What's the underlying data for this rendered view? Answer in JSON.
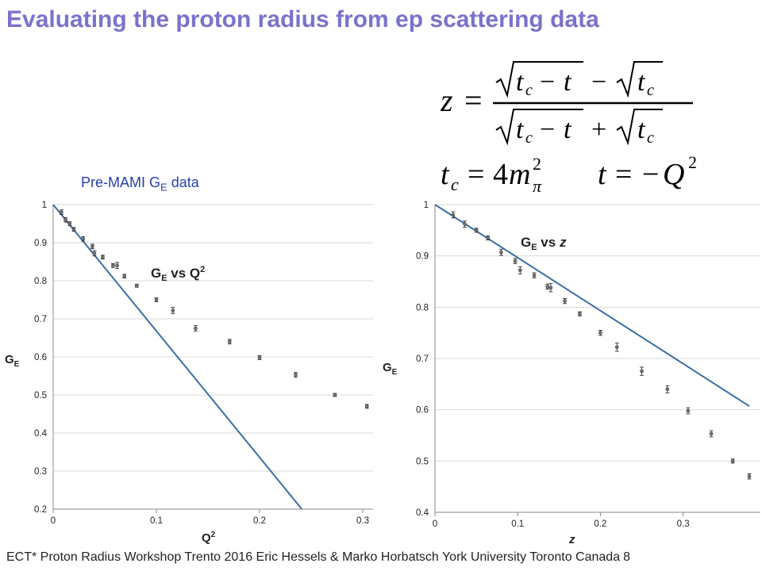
{
  "slide": {
    "title": "Evaluating the proton radius from ep scattering data",
    "subtitle_main": "Pre-MAMI G",
    "subtitle_sub": "E",
    "subtitle_tail": " data",
    "footer": "ECT* Proton Radius Workshop Trento 2016  Eric Hessels & Marko Horbatsch York University Toronto Canada",
    "page_number": "8",
    "colors": {
      "title": "#7b72cc",
      "subtitle": "#2540b0",
      "fit_line": "#3a6ea5",
      "grid": "#d9d9d9"
    }
  },
  "formulas": {
    "z_lhs": "z =",
    "z_numerator": "√(t_c − t) − √t_c",
    "z_denominator": "√(t_c − t) + √t_c",
    "tc_def": "t_c = 4m_π²",
    "t_def": "t = −Q²"
  },
  "chart_data": [
    {
      "type": "scatter",
      "title": "G_E vs Q²",
      "xlabel": "Q²",
      "ylabel": "G_E",
      "xlim": [
        0,
        0.3
      ],
      "ylim": [
        0.2,
        1
      ],
      "xticks": [
        "0",
        "0.1",
        "0.2",
        "0.3"
      ],
      "yticks": [
        "0.2",
        "0.3",
        "0.4",
        "0.5",
        "0.6",
        "0.7",
        "0.8",
        "0.9",
        "1"
      ],
      "grid": "horizontal",
      "line": {
        "name": "",
        "x": [
          0,
          0.241
        ],
        "y": [
          1,
          0.2
        ]
      },
      "series": [
        {
          "name": "",
          "x": [
            0.008,
            0.012,
            0.016,
            0.02,
            0.029,
            0.038,
            0.04,
            0.048,
            0.058,
            0.062,
            0.069,
            0.081,
            0.1,
            0.116,
            0.138,
            0.171,
            0.2,
            0.235,
            0.273,
            0.304
          ],
          "y": [
            0.98,
            0.96,
            0.95,
            0.935,
            0.91,
            0.89,
            0.872,
            0.862,
            0.84,
            0.84,
            0.812,
            0.787,
            0.75,
            0.722,
            0.675,
            0.64,
            0.598,
            0.553,
            0.5,
            0.47
          ],
          "err": [
            0.006,
            0.006,
            0.005,
            0.005,
            0.006,
            0.006,
            0.007,
            0.005,
            0.005,
            0.008,
            0.005,
            0.004,
            0.005,
            0.008,
            0.007,
            0.006,
            0.005,
            0.006,
            0.004,
            0.005
          ]
        }
      ]
    },
    {
      "type": "scatter",
      "title": "G_E vs z",
      "xlabel": "z",
      "ylabel": "G_E",
      "xlim": [
        0,
        0.38
      ],
      "ylim": [
        0.4,
        1
      ],
      "xticks": [
        "0",
        "0.1",
        "0.2",
        "0.3"
      ],
      "yticks": [
        "0.4",
        "0.5",
        "0.6",
        "0.7",
        "0.8",
        "0.9",
        "1"
      ],
      "grid": "horizontal",
      "line": {
        "name": "",
        "x": [
          0,
          0.38
        ],
        "y": [
          1,
          0.607
        ]
      },
      "series": [
        {
          "name": "",
          "x": [
            0.022,
            0.036,
            0.05,
            0.064,
            0.08,
            0.097,
            0.103,
            0.12,
            0.136,
            0.14,
            0.157,
            0.175,
            0.2,
            0.22,
            0.25,
            0.281,
            0.306,
            0.334,
            0.36,
            0.38
          ],
          "y": [
            0.98,
            0.962,
            0.95,
            0.935,
            0.907,
            0.89,
            0.872,
            0.862,
            0.84,
            0.838,
            0.812,
            0.787,
            0.75,
            0.722,
            0.675,
            0.64,
            0.598,
            0.553,
            0.5,
            0.47
          ],
          "err": [
            0.006,
            0.006,
            0.004,
            0.004,
            0.006,
            0.005,
            0.007,
            0.005,
            0.005,
            0.008,
            0.005,
            0.004,
            0.005,
            0.008,
            0.008,
            0.007,
            0.006,
            0.006,
            0.004,
            0.005
          ]
        }
      ]
    }
  ]
}
